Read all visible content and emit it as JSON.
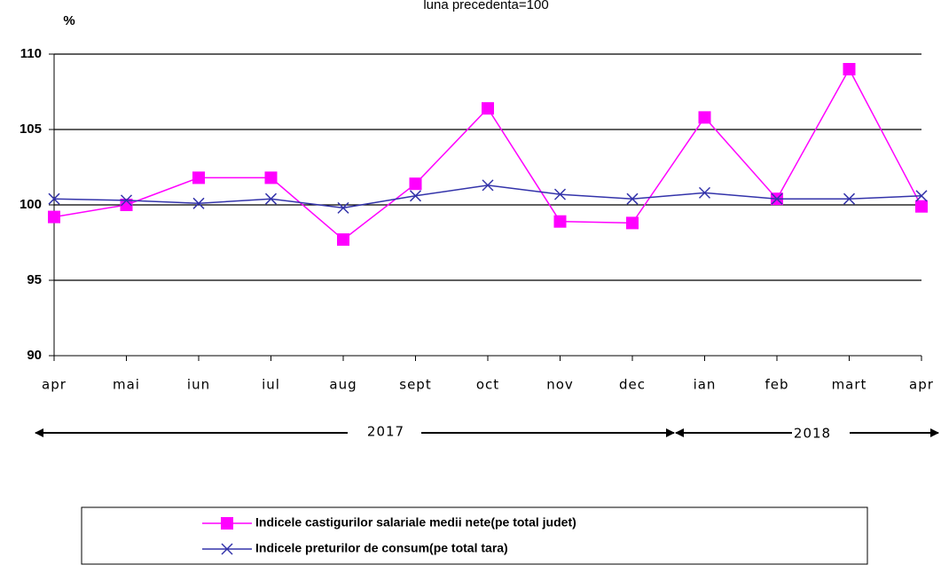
{
  "chart_data": {
    "type": "line",
    "title": "luna precedenta=100",
    "y_label": "%",
    "categories": [
      "apr",
      "mai",
      "iun",
      "iul",
      "aug",
      "sept",
      "oct",
      "nov",
      "dec",
      "ian",
      "feb",
      "mart",
      "apr"
    ],
    "series": [
      {
        "name": "Indicele castigurilor salariale medii nete(pe total judet)",
        "color": "#ff00ff",
        "marker": "square",
        "values": [
          99.2,
          100.0,
          101.8,
          101.8,
          97.7,
          101.4,
          106.4,
          98.9,
          98.8,
          105.8,
          100.4,
          109.0,
          99.9
        ]
      },
      {
        "name": "Indicele preturilor de consum(pe total tara)",
        "color": "#3333aa",
        "marker": "x",
        "values": [
          100.4,
          100.3,
          100.1,
          100.4,
          99.8,
          100.6,
          101.3,
          100.7,
          100.4,
          100.8,
          100.4,
          100.4,
          100.6
        ]
      }
    ],
    "annotations": [
      "2017",
      "2018"
    ],
    "ylim": [
      90,
      110
    ],
    "yticks": [
      90,
      95,
      100,
      105,
      110
    ],
    "grid": true
  }
}
